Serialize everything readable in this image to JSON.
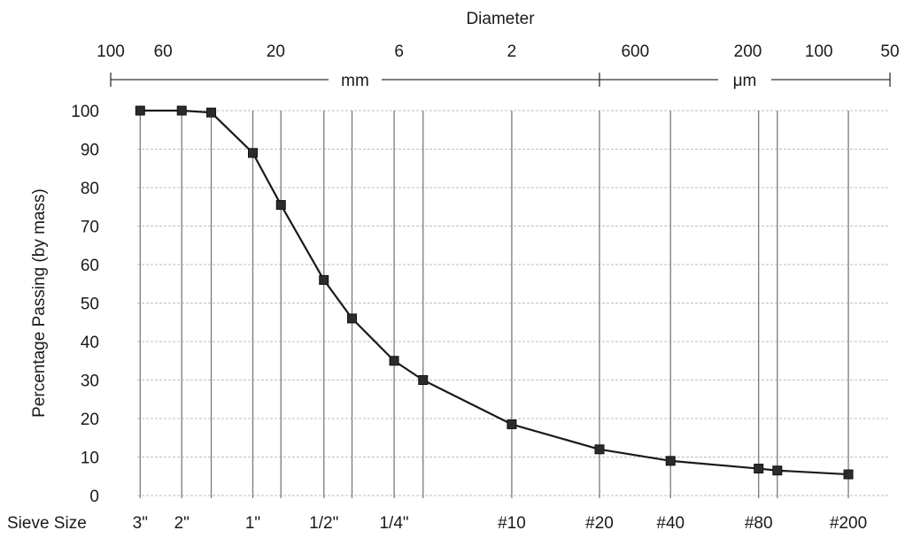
{
  "chart_data": {
    "type": "line",
    "title": "",
    "xlabel": "Diameter",
    "ylabel": "Percentage Passing (by mass)",
    "ylim": [
      0,
      100
    ],
    "y_ticks": [
      0,
      10,
      20,
      30,
      40,
      50,
      60,
      70,
      80,
      90,
      100
    ],
    "x_scale": "log",
    "x_direction": "decreasing",
    "x_unit": "mm",
    "grid": true,
    "top_axis": {
      "title": "Diameter",
      "tick_labels": [
        {
          "label": "100",
          "mm": 100
        },
        {
          "label": "60",
          "mm": 60
        },
        {
          "label": "20",
          "mm": 20
        },
        {
          "label": "6",
          "mm": 6
        },
        {
          "label": "2",
          "mm": 2
        },
        {
          "label": "600",
          "mm": 0.6
        },
        {
          "label": "200",
          "mm": 0.2
        },
        {
          "label": "100",
          "mm": 0.1
        },
        {
          "label": "50",
          "mm": 0.05
        }
      ],
      "units": [
        {
          "label": "mm",
          "mm_from": 100,
          "mm_to": 0.85
        },
        {
          "label": "μm",
          "mm_from": 0.85,
          "mm_to": 0.05
        }
      ]
    },
    "sieve_axis": {
      "title": "Sieve Size",
      "labels": [
        {
          "label": "3\"",
          "mm": 75
        },
        {
          "label": "2\"",
          "mm": 50
        },
        {
          "label": "1\"",
          "mm": 25
        },
        {
          "label": "1/2\"",
          "mm": 12.5
        },
        {
          "label": "1/4\"",
          "mm": 6.3
        },
        {
          "label": "#10",
          "mm": 2
        },
        {
          "label": "#20",
          "mm": 0.85
        },
        {
          "label": "#40",
          "mm": 0.425
        },
        {
          "label": "#80",
          "mm": 0.18
        },
        {
          "label": "#200",
          "mm": 0.075
        }
      ]
    },
    "gridlines_mm": [
      75,
      50,
      37.5,
      25,
      19,
      12.5,
      9.5,
      6.3,
      4.75,
      2,
      0.85,
      0.425,
      0.18,
      0.15,
      0.075
    ],
    "series": [
      {
        "color": "#1a1a1a",
        "points": [
          {
            "x": 75,
            "y": 100
          },
          {
            "x": 50,
            "y": 100
          },
          {
            "x": 37.5,
            "y": 99.5
          },
          {
            "x": 25,
            "y": 89
          },
          {
            "x": 19,
            "y": 75.5
          },
          {
            "x": 12.5,
            "y": 56
          },
          {
            "x": 9.5,
            "y": 46
          },
          {
            "x": 6.3,
            "y": 35
          },
          {
            "x": 4.75,
            "y": 30
          },
          {
            "x": 2,
            "y": 18.5
          },
          {
            "x": 0.85,
            "y": 12
          },
          {
            "x": 0.425,
            "y": 9
          },
          {
            "x": 0.18,
            "y": 7
          },
          {
            "x": 0.15,
            "y": 6.5
          },
          {
            "x": 0.075,
            "y": 5.5
          }
        ]
      }
    ]
  }
}
